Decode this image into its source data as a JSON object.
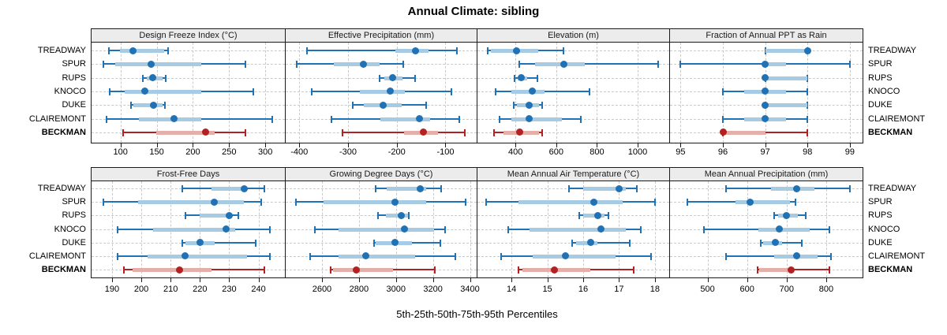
{
  "title": "Annual Climate: sibling",
  "caption": "5th-25th-50th-75th-95th Percentiles",
  "sites": [
    "TREADWAY",
    "SPUR",
    "RUPS",
    "KNOCO",
    "DUKE",
    "CLAIREMONT",
    "BECKMAN"
  ],
  "highlight_site": "BECKMAN",
  "colors": {
    "blue_main": "#2171b5",
    "blue_band": "#a6cbe3",
    "red_main": "#b22222",
    "red_band": "#e4afa9",
    "grid": "#c9c9c9",
    "panel_border": "#1a1a1a",
    "strip_bg": "#ececec"
  },
  "chart_data": [
    {
      "type": "percentile-dotplot",
      "title": "Design Freeze Index (°C)",
      "grid_row": 0,
      "grid_col": 0,
      "xlim": [
        60,
        327
      ],
      "ticks": [
        100,
        150,
        200,
        250,
        300
      ],
      "percentiles": [
        5,
        25,
        50,
        75,
        95
      ],
      "series": [
        {
          "name": "TREADWAY",
          "values": [
            84,
            99,
            117,
            160,
            166
          ]
        },
        {
          "name": "SPUR",
          "values": [
            76,
            93,
            142,
            212,
            272
          ]
        },
        {
          "name": "RUPS",
          "values": [
            131,
            136,
            144,
            158,
            162
          ]
        },
        {
          "name": "KNOCO",
          "values": [
            85,
            106,
            134,
            212,
            283
          ]
        },
        {
          "name": "DUKE",
          "values": [
            114,
            118,
            146,
            158,
            161
          ]
        },
        {
          "name": "CLAIREMONT",
          "values": [
            81,
            125,
            174,
            212,
            310
          ]
        },
        {
          "name": "BECKMAN",
          "values": [
            104,
            149,
            218,
            230,
            273
          ]
        }
      ]
    },
    {
      "type": "percentile-dotplot",
      "title": "Effective Precipitation (mm)",
      "grid_row": 0,
      "grid_col": 1,
      "xlim": [
        -428,
        -36
      ],
      "ticks": [
        -400,
        -300,
        -200,
        -100
      ],
      "percentiles": [
        5,
        25,
        50,
        75,
        95
      ],
      "series": [
        {
          "name": "TREADWAY",
          "values": [
            -385,
            -203,
            -161,
            -135,
            -76
          ]
        },
        {
          "name": "SPUR",
          "values": [
            -406,
            -330,
            -268,
            -236,
            -186
          ]
        },
        {
          "name": "RUPS",
          "values": [
            -236,
            -225,
            -209,
            -188,
            -163
          ]
        },
        {
          "name": "KNOCO",
          "values": [
            -374,
            -276,
            -214,
            -184,
            -88
          ]
        },
        {
          "name": "DUKE",
          "values": [
            -291,
            -268,
            -228,
            -190,
            -139
          ]
        },
        {
          "name": "CLAIREMONT",
          "values": [
            -334,
            -233,
            -153,
            -131,
            -71
          ]
        },
        {
          "name": "BECKMAN",
          "values": [
            -311,
            -185,
            -145,
            -115,
            -60
          ]
        }
      ]
    },
    {
      "type": "percentile-dotplot",
      "title": "Elevation (m)",
      "grid_row": 0,
      "grid_col": 2,
      "xlim": [
        213,
        1155
      ],
      "ticks": [
        400,
        600,
        800,
        1000
      ],
      "percentiles": [
        5,
        25,
        50,
        75,
        95
      ],
      "series": [
        {
          "name": "TREADWAY",
          "values": [
            265,
            277,
            406,
            510,
            635
          ]
        },
        {
          "name": "SPUR",
          "values": [
            419,
            497,
            638,
            742,
            1099
          ]
        },
        {
          "name": "RUPS",
          "values": [
            395,
            412,
            430,
            458,
            507
          ]
        },
        {
          "name": "KNOCO",
          "values": [
            303,
            381,
            481,
            542,
            764
          ]
        },
        {
          "name": "DUKE",
          "values": [
            393,
            406,
            468,
            515,
            529
          ]
        },
        {
          "name": "CLAIREMONT",
          "values": [
            323,
            381,
            467,
            626,
            722
          ]
        },
        {
          "name": "BECKMAN",
          "values": [
            293,
            342,
            422,
            515,
            532
          ]
        }
      ]
    },
    {
      "type": "percentile-dotplot",
      "title": "Fraction of Annual PPT as Rain",
      "grid_row": 0,
      "grid_col": 3,
      "xlim": [
        94.75,
        99.3
      ],
      "ticks": [
        95,
        96,
        97,
        98,
        99
      ],
      "percentiles": [
        5,
        25,
        50,
        75,
        95
      ],
      "series": [
        {
          "name": "TREADWAY",
          "values": [
            97,
            97,
            98,
            98,
            98
          ]
        },
        {
          "name": "SPUR",
          "values": [
            95,
            97,
            97,
            97.5,
            99
          ]
        },
        {
          "name": "RUPS",
          "values": [
            97,
            97,
            97,
            98,
            98
          ]
        },
        {
          "name": "KNOCO",
          "values": [
            96,
            96.5,
            97,
            97.5,
            98
          ]
        },
        {
          "name": "DUKE",
          "values": [
            97,
            97,
            97,
            98,
            98
          ]
        },
        {
          "name": "CLAIREMONT",
          "values": [
            96,
            96.5,
            97,
            97.5,
            98
          ]
        },
        {
          "name": "BECKMAN",
          "values": [
            96,
            96,
            96,
            97,
            98
          ]
        }
      ]
    },
    {
      "type": "percentile-dotplot",
      "title": "Frost-Free Days",
      "grid_row": 1,
      "grid_col": 0,
      "xlim": [
        183,
        249
      ],
      "ticks": [
        190,
        200,
        210,
        220,
        230,
        240
      ],
      "percentiles": [
        5,
        25,
        50,
        75,
        95
      ],
      "series": [
        {
          "name": "TREADWAY",
          "values": [
            214,
            224,
            235,
            236,
            242
          ]
        },
        {
          "name": "SPUR",
          "values": [
            187,
            199,
            225,
            235,
            241
          ]
        },
        {
          "name": "RUPS",
          "values": [
            215,
            220,
            230,
            231,
            233
          ]
        },
        {
          "name": "KNOCO",
          "values": [
            192,
            204,
            229,
            232,
            244
          ]
        },
        {
          "name": "DUKE",
          "values": [
            214,
            215,
            220,
            225,
            239
          ]
        },
        {
          "name": "CLAIREMONT",
          "values": [
            192,
            202,
            215,
            236,
            244
          ]
        },
        {
          "name": "BECKMAN",
          "values": [
            194,
            197,
            213,
            224,
            242
          ]
        }
      ]
    },
    {
      "type": "percentile-dotplot",
      "title": "Growing Degree Days (°C)",
      "grid_row": 1,
      "grid_col": 1,
      "xlim": [
        2404,
        3436
      ],
      "ticks": [
        2600,
        2800,
        3000,
        3200,
        3400
      ],
      "percentiles": [
        5,
        25,
        50,
        75,
        95
      ],
      "series": [
        {
          "name": "TREADWAY",
          "values": [
            2890,
            2950,
            3130,
            3165,
            3245
          ]
        },
        {
          "name": "SPUR",
          "values": [
            2460,
            2610,
            2995,
            3165,
            3375
          ]
        },
        {
          "name": "RUPS",
          "values": [
            2905,
            2945,
            3030,
            3065,
            3070
          ]
        },
        {
          "name": "KNOCO",
          "values": [
            2560,
            2690,
            3045,
            3205,
            3265
          ]
        },
        {
          "name": "DUKE",
          "values": [
            2880,
            2890,
            2995,
            3085,
            3240
          ]
        },
        {
          "name": "CLAIREMONT",
          "values": [
            2535,
            2690,
            2835,
            3105,
            3320
          ]
        },
        {
          "name": "BECKMAN",
          "values": [
            2645,
            2660,
            2785,
            2985,
            3210
          ]
        }
      ]
    },
    {
      "type": "percentile-dotplot",
      "title": "Mean Annual Air Temperature (°C)",
      "grid_row": 1,
      "grid_col": 2,
      "xlim": [
        13.05,
        18.4
      ],
      "ticks": [
        14,
        15,
        16,
        17,
        18
      ],
      "percentiles": [
        5,
        25,
        50,
        75,
        95
      ],
      "series": [
        {
          "name": "TREADWAY",
          "values": [
            15.6,
            16.0,
            17.0,
            17.2,
            17.5
          ]
        },
        {
          "name": "SPUR",
          "values": [
            13.3,
            14.2,
            16.3,
            17.1,
            18.0
          ]
        },
        {
          "name": "RUPS",
          "values": [
            15.9,
            16.0,
            16.4,
            16.6,
            16.7
          ]
        },
        {
          "name": "KNOCO",
          "values": [
            13.9,
            14.5,
            16.5,
            17.2,
            17.6
          ]
        },
        {
          "name": "DUKE",
          "values": [
            15.7,
            15.8,
            16.2,
            16.4,
            17.3
          ]
        },
        {
          "name": "CLAIREMONT",
          "values": [
            13.7,
            14.6,
            15.5,
            16.9,
            17.9
          ]
        },
        {
          "name": "BECKMAN",
          "values": [
            14.2,
            14.3,
            15.2,
            16.2,
            17.4
          ]
        }
      ]
    },
    {
      "type": "percentile-dotplot",
      "title": "Mean Annual Precipitation (mm)",
      "grid_row": 1,
      "grid_col": 3,
      "xlim": [
        405,
        892
      ],
      "ticks": [
        500,
        600,
        700,
        800
      ],
      "percentiles": [
        5,
        25,
        50,
        75,
        95
      ],
      "series": [
        {
          "name": "TREADWAY",
          "values": [
            547,
            661,
            725,
            771,
            860
          ]
        },
        {
          "name": "SPUR",
          "values": [
            448,
            571,
            607,
            708,
            723
          ]
        },
        {
          "name": "RUPS",
          "values": [
            668,
            678,
            700,
            728,
            748
          ]
        },
        {
          "name": "KNOCO",
          "values": [
            491,
            628,
            681,
            758,
            809
          ]
        },
        {
          "name": "DUKE",
          "values": [
            635,
            641,
            671,
            688,
            738
          ]
        },
        {
          "name": "CLAIREMONT",
          "values": [
            547,
            668,
            725,
            778,
            813
          ]
        },
        {
          "name": "BECKMAN",
          "values": [
            627,
            631,
            711,
            718,
            808
          ]
        }
      ]
    }
  ]
}
